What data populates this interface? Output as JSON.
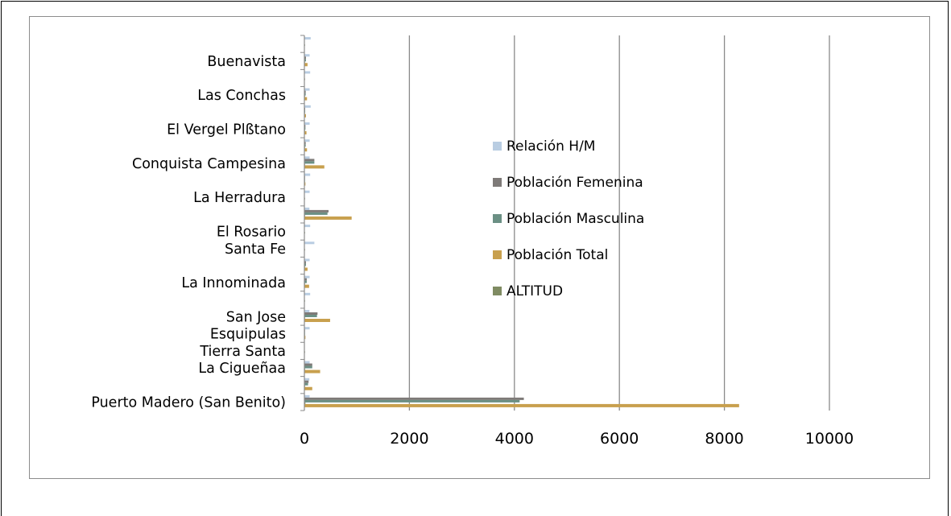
{
  "chart_data": {
    "type": "bar",
    "orientation": "horizontal",
    "title": "",
    "xlabel": "",
    "ylabel": "",
    "xlim": [
      0,
      10000
    ],
    "x_ticks": [
      0,
      2000,
      4000,
      6000,
      8000,
      10000
    ],
    "x_tick_labels": [
      "0",
      "2000",
      "4000",
      "6000",
      "8000",
      "10000"
    ],
    "grid": "vertical major gridlines",
    "legend_position": "right",
    "categories_bottom_to_top": [
      "Puerto Madero (San Benito)",
      "",
      "La Cigueñaa",
      "Tierra Santa",
      "Esquipulas",
      "San Jose",
      "",
      "La Innominada",
      "",
      "Santa Fe",
      "El Rosario",
      "",
      "La Herradura",
      "",
      "Conquista Campesina",
      "",
      "El Vergel Plßtano",
      "",
      "Las Conchas",
      "",
      "Buenavista",
      ""
    ],
    "series": [
      {
        "name": "ALTITUD",
        "color": "#7f8b62",
        "values": [
          20,
          5,
          10,
          5,
          5,
          10,
          5,
          10,
          5,
          5,
          5,
          5,
          5,
          5,
          10,
          5,
          5,
          5,
          5,
          5,
          5,
          5
        ]
      },
      {
        "name": "Población Total",
        "color": "#c8a04e",
        "values": [
          8280,
          150,
          300,
          0,
          20,
          490,
          0,
          90,
          60,
          0,
          0,
          900,
          0,
          20,
          380,
          50,
          40,
          30,
          50,
          0,
          60,
          0
        ]
      },
      {
        "name": "Población Masculina",
        "color": "#6b9084",
        "values": [
          4100,
          70,
          150,
          0,
          10,
          240,
          0,
          45,
          30,
          0,
          0,
          440,
          0,
          10,
          190,
          25,
          20,
          15,
          25,
          0,
          30,
          0
        ]
      },
      {
        "name": "Población Femenina",
        "color": "#7e7a78",
        "values": [
          4180,
          80,
          150,
          0,
          10,
          250,
          0,
          45,
          30,
          0,
          0,
          460,
          0,
          10,
          190,
          25,
          20,
          15,
          25,
          0,
          30,
          0
        ]
      },
      {
        "name": "Relación H/M",
        "color": "#b9cde2",
        "values": [
          100,
          95,
          100,
          0,
          100,
          96,
          110,
          100,
          100,
          190,
          110,
          96,
          100,
          110,
          100,
          100,
          100,
          120,
          100,
          110,
          100,
          120
        ]
      }
    ]
  }
}
